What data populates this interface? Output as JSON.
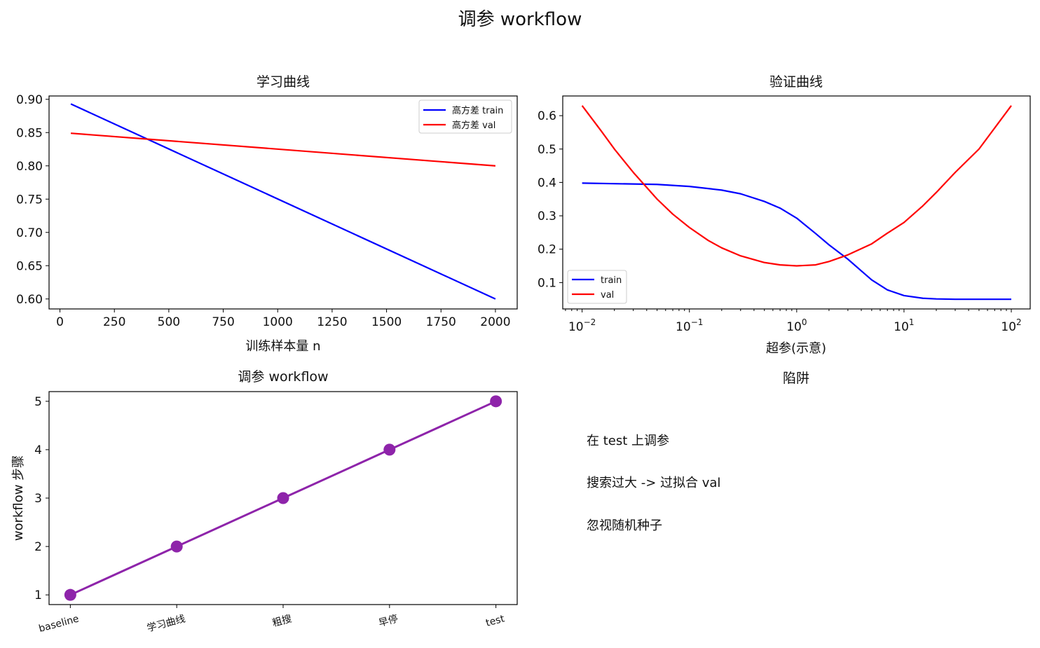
{
  "suptitle": "调参 workflow",
  "chart_data": [
    {
      "type": "line",
      "title": "学习曲线",
      "xlabel": "训练样本量 n",
      "ylabel": "",
      "xlim": [
        -50,
        2100
      ],
      "ylim": [
        0.585,
        0.905
      ],
      "xticks": [
        0,
        250,
        500,
        750,
        1000,
        1250,
        1500,
        1750,
        2000
      ],
      "yticks": [
        "0.60",
        "0.65",
        "0.70",
        "0.75",
        "0.80",
        "0.85",
        "0.90"
      ],
      "legend_position": "upper right",
      "series": [
        {
          "name": "高方差 train",
          "color": "#0000ff",
          "x": [
            50,
            2000
          ],
          "y": [
            0.893,
            0.6
          ]
        },
        {
          "name": "高方差 val",
          "color": "#ff0000",
          "x": [
            50,
            2000
          ],
          "y": [
            0.849,
            0.8
          ]
        }
      ]
    },
    {
      "type": "line",
      "title": "验证曲线",
      "xlabel": "超参(示意)",
      "ylabel": "",
      "xscale": "log",
      "xlim": [
        0.0066,
        150
      ],
      "ylim": [
        0.021,
        0.659
      ],
      "xticks": [
        {
          "base": "10",
          "exp": "−2"
        },
        {
          "base": "10",
          "exp": "−1"
        },
        {
          "base": "10",
          "exp": "0"
        },
        {
          "base": "10",
          "exp": "1"
        },
        {
          "base": "10",
          "exp": "2"
        }
      ],
      "yticks": [
        "0.1",
        "0.2",
        "0.3",
        "0.4",
        "0.5",
        "0.6"
      ],
      "legend_position": "lower left",
      "series": [
        {
          "name": "train",
          "color": "#0000ff",
          "x": [
            0.01,
            0.05,
            0.1,
            0.2,
            0.3,
            0.5,
            0.7,
            1.0,
            1.5,
            2.0,
            3.0,
            4.0,
            5.0,
            7.0,
            10.0,
            15.0,
            20.0,
            30.0,
            50.0,
            100.0
          ],
          "y": [
            0.398,
            0.394,
            0.388,
            0.377,
            0.366,
            0.343,
            0.323,
            0.293,
            0.247,
            0.213,
            0.17,
            0.135,
            0.108,
            0.078,
            0.061,
            0.053,
            0.051,
            0.05,
            0.05,
            0.05
          ]
        },
        {
          "name": "val",
          "color": "#ff0000",
          "x": [
            0.01,
            0.015,
            0.02,
            0.03,
            0.05,
            0.07,
            0.1,
            0.15,
            0.2,
            0.3,
            0.5,
            0.7,
            1.0,
            1.5,
            2.0,
            3.0,
            5.0,
            7.0,
            10.0,
            15.0,
            20.0,
            30.0,
            50.0,
            100.0
          ],
          "y": [
            0.63,
            0.555,
            0.5,
            0.43,
            0.35,
            0.305,
            0.265,
            0.226,
            0.204,
            0.18,
            0.16,
            0.153,
            0.15,
            0.153,
            0.163,
            0.183,
            0.216,
            0.248,
            0.28,
            0.33,
            0.37,
            0.43,
            0.5,
            0.63
          ]
        }
      ]
    },
    {
      "type": "line",
      "title": "调参 workflow",
      "xlabel": "",
      "ylabel": "workflow 步骤",
      "categories": [
        "baseline",
        "学习曲线",
        "粗搜",
        "早停",
        "test"
      ],
      "xlim": [
        -0.2,
        4.2
      ],
      "ylim": [
        0.8,
        5.2
      ],
      "yticks": [
        "1",
        "2",
        "3",
        "4",
        "5"
      ],
      "series": [
        {
          "color": "#8e24aa",
          "values": [
            1,
            2,
            3,
            4,
            5
          ]
        }
      ]
    }
  ],
  "pitfalls": {
    "title": "陷阱",
    "items": [
      "在 test 上调参",
      "搜索过大 -> 过拟合 val",
      "忽视随机种子"
    ]
  }
}
